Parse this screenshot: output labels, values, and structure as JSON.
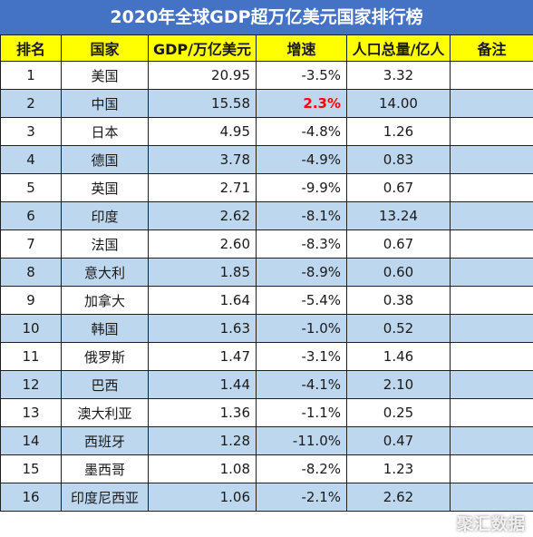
{
  "title": "2020年全球GDP超万亿美元国家排行榜",
  "headers": {
    "rank": "排名",
    "country": "国家",
    "gdp": "GDP/万亿美元",
    "growth": "增速",
    "population": "人口总量/亿人",
    "note": "备注"
  },
  "rows": [
    {
      "rank": "1",
      "country": "美国",
      "gdp": "20.95",
      "growth": "-3.5%",
      "population": "3.32",
      "note": ""
    },
    {
      "rank": "2",
      "country": "中国",
      "gdp": "15.58",
      "growth": "2.3%",
      "population": "14.00",
      "note": ""
    },
    {
      "rank": "3",
      "country": "日本",
      "gdp": "4.95",
      "growth": "-4.8%",
      "population": "1.26",
      "note": ""
    },
    {
      "rank": "4",
      "country": "德国",
      "gdp": "3.78",
      "growth": "-4.9%",
      "population": "0.83",
      "note": ""
    },
    {
      "rank": "5",
      "country": "英国",
      "gdp": "2.71",
      "growth": "-9.9%",
      "population": "0.67",
      "note": ""
    },
    {
      "rank": "6",
      "country": "印度",
      "gdp": "2.62",
      "growth": "-8.1%",
      "population": "13.24",
      "note": ""
    },
    {
      "rank": "7",
      "country": "法国",
      "gdp": "2.60",
      "growth": "-8.3%",
      "population": "0.67",
      "note": ""
    },
    {
      "rank": "8",
      "country": "意大利",
      "gdp": "1.85",
      "growth": "-8.9%",
      "population": "0.60",
      "note": ""
    },
    {
      "rank": "9",
      "country": "加拿大",
      "gdp": "1.64",
      "growth": "-5.4%",
      "population": "0.38",
      "note": ""
    },
    {
      "rank": "10",
      "country": "韩国",
      "gdp": "1.63",
      "growth": "-1.0%",
      "population": "0.52",
      "note": ""
    },
    {
      "rank": "11",
      "country": "俄罗斯",
      "gdp": "1.47",
      "growth": "-3.1%",
      "population": "1.46",
      "note": ""
    },
    {
      "rank": "12",
      "country": "巴西",
      "gdp": "1.44",
      "growth": "-4.1%",
      "population": "2.10",
      "note": ""
    },
    {
      "rank": "13",
      "country": "澳大利亚",
      "gdp": "1.36",
      "growth": "-1.1%",
      "population": "0.25",
      "note": ""
    },
    {
      "rank": "14",
      "country": "西班牙",
      "gdp": "1.28",
      "growth": "-11.0%",
      "population": "0.47",
      "note": ""
    },
    {
      "rank": "15",
      "country": "墨西哥",
      "gdp": "1.08",
      "growth": "-8.2%",
      "population": "1.23",
      "note": ""
    },
    {
      "rank": "16",
      "country": "印度尼西亚",
      "gdp": "1.06",
      "growth": "-2.1%",
      "population": "2.62",
      "note": ""
    }
  ],
  "watermark": "聚汇数据",
  "colors": {
    "title_bg": "#4472c4",
    "header_bg": "#ffff00",
    "stripe_bg": "#bdd7ee",
    "positive_growth": "#ff0000"
  }
}
